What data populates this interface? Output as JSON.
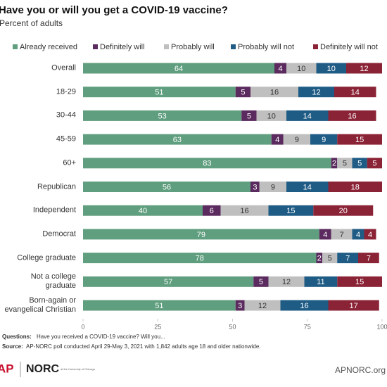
{
  "chart_data": {
    "type": "stacked_bar_horizontal",
    "title": "Have you or will you get a COVID-19 vaccine?",
    "subtitle": "Percent of adults",
    "categories": [
      "Overall",
      "18-29",
      "30-44",
      "45-59",
      "60+",
      "Republican",
      "Independent",
      "Democrat",
      "College graduate",
      "Not a college graduate",
      "Born-again or\nevangelical Christian"
    ],
    "series": [
      {
        "name": "Already received",
        "color": "#5f9e7e",
        "values": [
          64,
          51,
          53,
          63,
          83,
          56,
          40,
          79,
          78,
          57,
          51
        ]
      },
      {
        "name": "Definitely will",
        "color": "#5b2a5e",
        "values": [
          4,
          5,
          5,
          4,
          2,
          3,
          6,
          4,
          2,
          5,
          3
        ]
      },
      {
        "name": "Probably will",
        "color": "#bfbfbf",
        "values": [
          10,
          16,
          10,
          9,
          5,
          9,
          16,
          7,
          5,
          12,
          12
        ]
      },
      {
        "name": "Probably will not",
        "color": "#1f5c85",
        "values": [
          10,
          12,
          14,
          9,
          5,
          14,
          15,
          4,
          7,
          11,
          16
        ]
      },
      {
        "name": "Definitely will not",
        "color": "#8b2336",
        "values": [
          12,
          14,
          16,
          15,
          5,
          18,
          20,
          4,
          7,
          15,
          17
        ]
      }
    ],
    "xlim": [
      0,
      100
    ],
    "xticks": [
      0,
      25,
      50,
      75,
      100
    ],
    "grid": false,
    "legend": "top",
    "question_label": "Questions:",
    "question": "Have you received a COVID-19 vaccine? Will you...",
    "source_label": "Source:",
    "source": "AP-NORC poll conducted April 29-May 3, 2021 with 1,842 adults age 18 and older nationwide.",
    "logo_ap": "AP",
    "logo_norc": "NORC",
    "logo_norc_sub": "at the University of Chicago",
    "site": "APNORC.org"
  }
}
